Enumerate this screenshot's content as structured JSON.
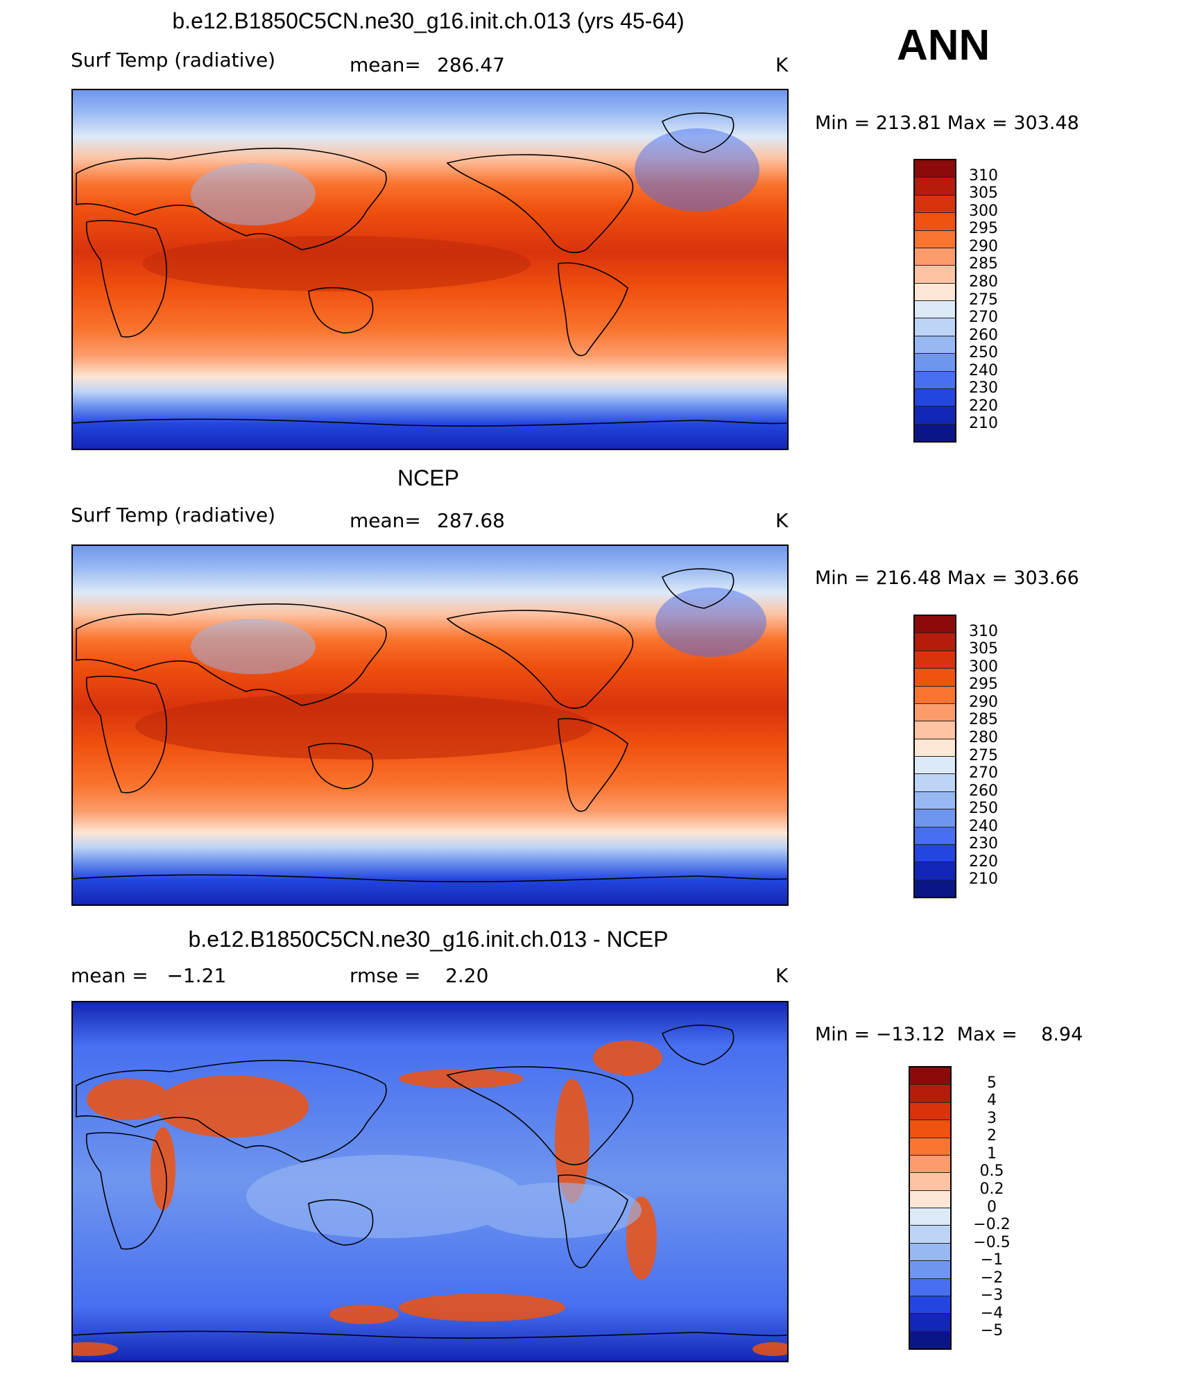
{
  "season": "ANN",
  "panels": [
    {
      "id": "model",
      "title": "b.e12.B1850C5CN.ne30_g16.init.ch.013 (yrs 45-64)",
      "variable": "Surf Temp (radiative)",
      "mean_label": "mean=",
      "mean_value": "286.47",
      "units": "K",
      "min_max": "Min = 213.81  Max = 303.48"
    },
    {
      "id": "obs",
      "title": "NCEP",
      "variable": "Surf Temp (radiative)",
      "mean_label": "mean=",
      "mean_value": "287.68",
      "units": "K",
      "min_max": "Min = 216.48  Max = 303.66"
    },
    {
      "id": "diff",
      "title": "b.e12.B1850C5CN.ne30_g16.init.ch.013 - NCEP",
      "stat1": "mean =   −1.21",
      "stat2": "rmse =    2.20",
      "units": "K",
      "min_max": "Min = −13.12  Max =    8.94"
    }
  ],
  "colorbars": {
    "temp": {
      "labels": [
        "310",
        "305",
        "300",
        "295",
        "290",
        "285",
        "280",
        "275",
        "270",
        "260",
        "250",
        "240",
        "230",
        "220",
        "210"
      ],
      "colors": [
        "#8c0a0a",
        "#b51d0a",
        "#d9330c",
        "#f0520f",
        "#fa7530",
        "#fc9c6b",
        "#fdc3a3",
        "#fde6d4",
        "#dce9f7",
        "#bed4f6",
        "#98b8f3",
        "#6f96ee",
        "#476ff0",
        "#2346e0",
        "#1227b6",
        "#0b1686"
      ]
    },
    "diff": {
      "labels": [
        "5",
        "4",
        "3",
        "2",
        "1",
        "0.5",
        "0.2",
        "0",
        "−0.2",
        "−0.5",
        "−1",
        "−2",
        "−3",
        "−4",
        "−5"
      ],
      "colors": [
        "#8c0a0a",
        "#b51d0a",
        "#d9330c",
        "#f0520f",
        "#fa7530",
        "#fc9c6b",
        "#fdc3a3",
        "#fde6d4",
        "#dce9f7",
        "#bed4f6",
        "#98b8f3",
        "#6f96ee",
        "#476ff0",
        "#2346e0",
        "#1227b6",
        "#0b1686"
      ]
    }
  }
}
